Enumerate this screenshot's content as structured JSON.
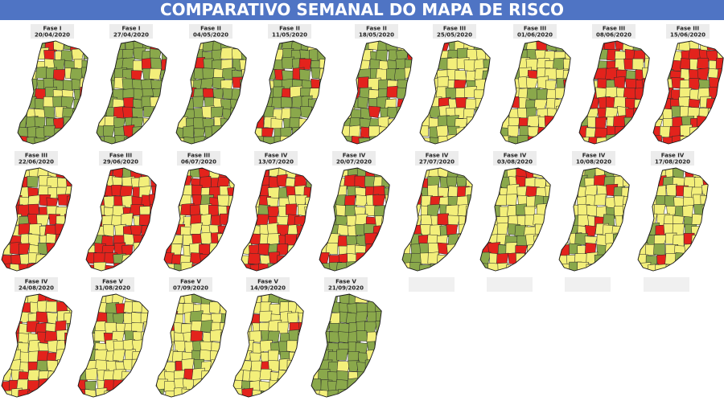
{
  "title": "COMPARATIVO SEMANAL DO MAPA DE RISCO",
  "maps": [
    {
      "phase": "Fase I",
      "date": "20/04/2020"
    },
    {
      "phase": "Fase I",
      "date": "27/04/2020"
    },
    {
      "phase": "Fase II",
      "date": "04/05/2020"
    },
    {
      "phase": "Fase II",
      "date": "11/05/2020"
    },
    {
      "phase": "Fase II",
      "date": "18/05/2020"
    },
    {
      "phase": "Fase III",
      "date": "25/05/2020"
    },
    {
      "phase": "Fase III",
      "date": "01/06/2020"
    },
    {
      "phase": "Fase III",
      "date": "08/06/2020"
    },
    {
      "phase": "Fase III",
      "date": "15/06/2020"
    },
    {
      "phase": "Fase III",
      "date": "22/06/2020"
    },
    {
      "phase": "Fase III",
      "date": "29/06/2020"
    },
    {
      "phase": "Fase III",
      "date": "06/07/2020"
    },
    {
      "phase": "Fase IV",
      "date": "13/07/2020"
    },
    {
      "phase": "Fase IV",
      "date": "20/07/2020"
    },
    {
      "phase": "Fase IV",
      "date": "27/07/2020"
    },
    {
      "phase": "Fase IV",
      "date": "03/08/2020"
    },
    {
      "phase": "Fase IV",
      "date": "10/08/2020"
    },
    {
      "phase": "Fase IV",
      "date": "17/08/2020"
    },
    {
      "phase": "Fase IV",
      "date": "24/08/2020"
    },
    {
      "phase": "Fase V",
      "date": "31/08/2020"
    },
    {
      "phase": "Fase V",
      "date": "07/09/2020"
    },
    {
      "phase": "Fase V",
      "date": "14/09/2020"
    },
    {
      "phase": "Fase V",
      "date": "21/09/2020"
    }
  ]
}
